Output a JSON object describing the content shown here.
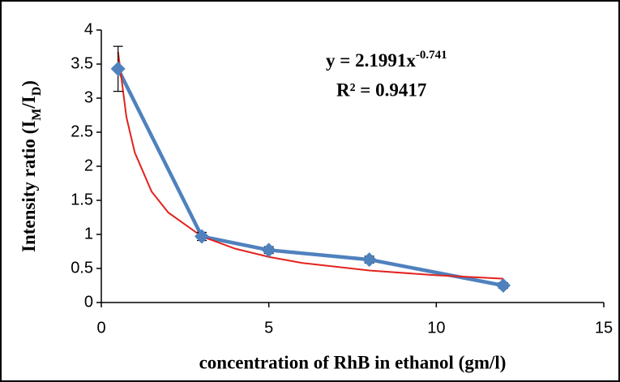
{
  "chart_data": {
    "type": "line",
    "xlabel": "concentration of RhB in ethanol (gm/l)",
    "ylabel": [
      "Intensity ratio (I",
      "M",
      "/I",
      "D",
      ")"
    ],
    "annotations": [
      [
        "y = 2.1991x",
        "-0.741"
      ],
      "R² = 0.9417"
    ],
    "x": [
      0.5,
      3,
      5,
      8,
      12
    ],
    "series": [
      {
        "color": "#4f81bd",
        "values": [
          3.43,
          0.97,
          0.77,
          0.63,
          0.25
        ],
        "errors": [
          0.33,
          0.06,
          0.05,
          0.05,
          0.04
        ]
      }
    ],
    "trendline": {
      "color": "#e3221d",
      "x": [
        0.5,
        0.75,
        1,
        1.5,
        2,
        3,
        4,
        5,
        6,
        8,
        10,
        12
      ],
      "values": [
        3.68,
        2.72,
        2.2,
        1.63,
        1.32,
        0.97,
        0.79,
        0.67,
        0.58,
        0.47,
        0.4,
        0.35
      ]
    },
    "xlim": [
      0,
      15
    ],
    "xticks": [
      0,
      5,
      10,
      15
    ],
    "ylim": [
      0,
      4
    ],
    "yticks": [
      0,
      0.5,
      1,
      1.5,
      2,
      2.5,
      3,
      3.5,
      4
    ]
  }
}
